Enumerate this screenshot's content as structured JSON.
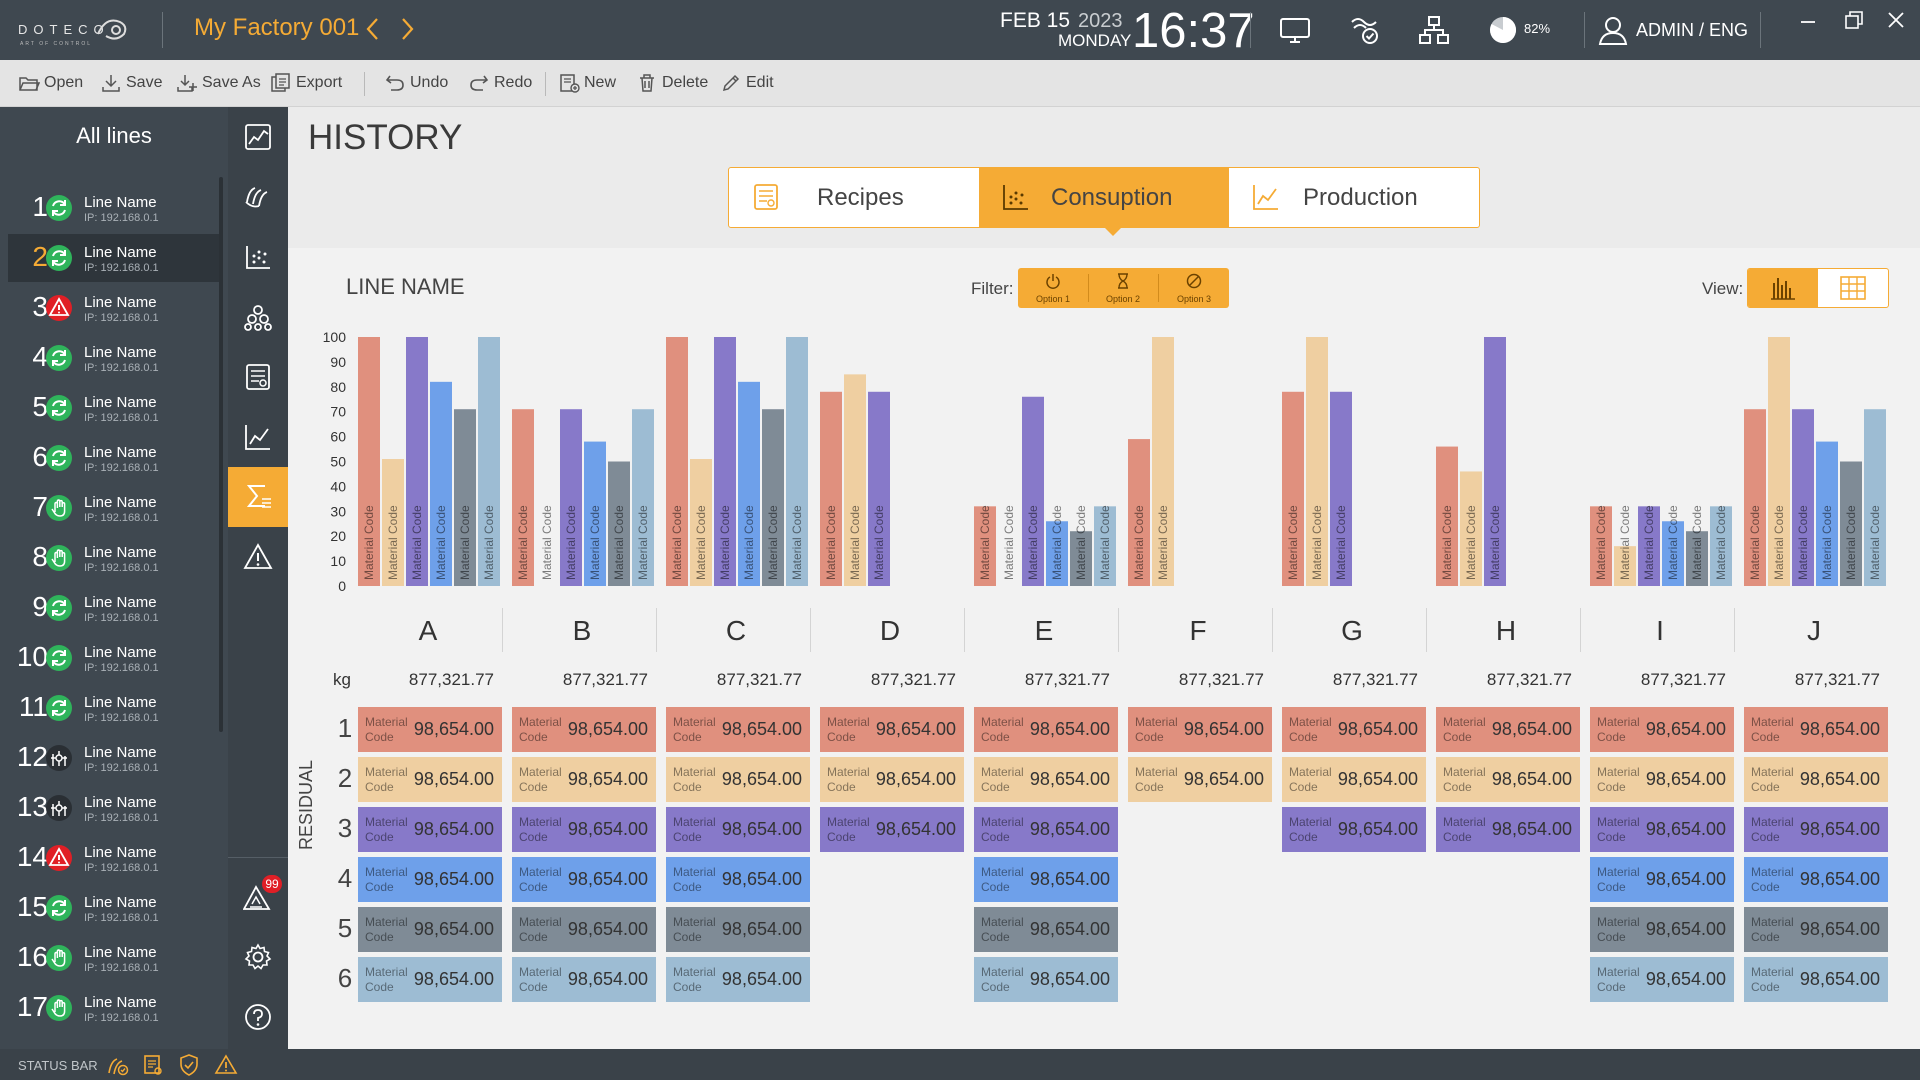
{
  "app": {
    "logo_brand": "DOTECO",
    "logo_tagline": "ART OF CONTROL",
    "factory_title": "My Factory 001",
    "date_day": "FEB 15",
    "date_year": "2023",
    "date_weekday": "MONDAY",
    "clock": "16:37",
    "disk_percent": "82%",
    "user": "ADMIN / ENG"
  },
  "toolbar": {
    "open": "Open",
    "save": "Save",
    "save_as": "Save As",
    "export": "Export",
    "undo": "Undo",
    "redo": "Redo",
    "new": "New",
    "delete": "Delete",
    "edit": "Edit"
  },
  "sidebar": {
    "title": "All lines",
    "lines": [
      {
        "num": "1",
        "name": "Line Name",
        "ip": "IP: 192.168.0.1",
        "status": "running"
      },
      {
        "num": "2",
        "name": "Line Name",
        "ip": "IP: 192.168.0.1",
        "status": "running"
      },
      {
        "num": "3",
        "name": "Line Name",
        "ip": "IP: 192.168.0.1",
        "status": "alarm"
      },
      {
        "num": "4",
        "name": "Line Name",
        "ip": "IP: 192.168.0.1",
        "status": "running"
      },
      {
        "num": "5",
        "name": "Line Name",
        "ip": "IP: 192.168.0.1",
        "status": "running"
      },
      {
        "num": "6",
        "name": "Line Name",
        "ip": "IP: 192.168.0.1",
        "status": "running"
      },
      {
        "num": "7",
        "name": "Line Name",
        "ip": "IP: 192.168.0.1",
        "status": "manual"
      },
      {
        "num": "8",
        "name": "Line Name",
        "ip": "IP: 192.168.0.1",
        "status": "manual"
      },
      {
        "num": "9",
        "name": "Line Name",
        "ip": "IP: 192.168.0.1",
        "status": "running"
      },
      {
        "num": "10",
        "name": "Line Name",
        "ip": "IP: 192.168.0.1",
        "status": "running"
      },
      {
        "num": "11",
        "name": "Line Name",
        "ip": "IP: 192.168.0.1",
        "status": "running"
      },
      {
        "num": "12",
        "name": "Line Name",
        "ip": "IP: 192.168.0.1",
        "status": "stopped"
      },
      {
        "num": "13",
        "name": "Line Name",
        "ip": "IP: 192.168.0.1",
        "status": "stopped"
      },
      {
        "num": "14",
        "name": "Line Name",
        "ip": "IP: 192.168.0.1",
        "status": "alarm"
      },
      {
        "num": "15",
        "name": "Line Name",
        "ip": "IP: 192.168.0.1",
        "status": "running"
      },
      {
        "num": "16",
        "name": "Line Name",
        "ip": "IP: 192.168.0.1",
        "status": "manual"
      },
      {
        "num": "17",
        "name": "Line Name",
        "ip": "IP: 192.168.0.1",
        "status": "manual"
      }
    ],
    "active_line": "2"
  },
  "rail": {
    "alert_count": "99",
    "items": [
      "dashboard-icon",
      "recipes-icon",
      "dosing-icon",
      "materials-icon",
      "reports-icon",
      "trend-icon",
      "history-icon",
      "alarm-icon",
      "alerts-icon",
      "settings-icon",
      "help-icon"
    ],
    "active": "history-icon"
  },
  "statusbar": {
    "label": "STATUS BAR"
  },
  "page": {
    "title": "HISTORY",
    "tabs": [
      {
        "label": "Recipes",
        "icon": "recipes-icon"
      },
      {
        "label": "Consuption",
        "icon": "consumption-icon"
      },
      {
        "label": "Production",
        "icon": "production-icon"
      }
    ],
    "active_tab": "Consuption",
    "line_title": "LINE NAME",
    "filter_label": "Filter:",
    "filter_options": [
      "Option 1",
      "Option 2",
      "Option 3"
    ],
    "view_label": "View:",
    "view_options": [
      "bar-chart-icon",
      "table-grid-icon"
    ],
    "active_view": "bar-chart-icon",
    "unit_label": "kg",
    "residual_label": "RESIDUAL"
  },
  "colors": {
    "accent": "#f5ab35",
    "dark": "#3f4850",
    "material": [
      "#e0907e",
      "#efcfa1",
      "#8779c9",
      "#6ea0ea",
      "#7f8b96",
      "#9dbcd3"
    ],
    "running": "#2fb45b",
    "alarm": "#e01f26"
  },
  "chart_data": {
    "type": "bar",
    "ylim": [
      0,
      100
    ],
    "yticks": [
      0,
      10,
      20,
      30,
      40,
      50,
      60,
      70,
      80,
      90,
      100
    ],
    "bar_label": "Material Code",
    "series_names": [
      "1",
      "2",
      "3",
      "4",
      "5",
      "6"
    ],
    "groups": [
      {
        "label": "A",
        "total": "877,321.77",
        "values": [
          100,
          51,
          100,
          82,
          71,
          100
        ]
      },
      {
        "label": "B",
        "total": "877,321.77",
        "values": [
          71,
          0,
          71,
          58,
          50,
          71
        ]
      },
      {
        "label": "C",
        "total": "877,321.77",
        "values": [
          100,
          51,
          100,
          82,
          71,
          100
        ]
      },
      {
        "label": "D",
        "total": "877,321.77",
        "values": [
          78,
          85,
          78
        ]
      },
      {
        "label": "E",
        "total": "877,321.77",
        "values": [
          32,
          0,
          76,
          26,
          22,
          32
        ]
      },
      {
        "label": "F",
        "total": "877,321.77",
        "values": [
          59,
          100
        ]
      },
      {
        "label": "G",
        "total": "877,321.77",
        "values": [
          78,
          100,
          78
        ]
      },
      {
        "label": "H",
        "total": "877,321.77",
        "values": [
          56,
          46,
          100
        ]
      },
      {
        "label": "I",
        "total": "877,321.77",
        "values": [
          32,
          16,
          32,
          26,
          22,
          32
        ]
      },
      {
        "label": "J",
        "total": "877,321.77",
        "values": [
          71,
          100,
          71,
          58,
          50,
          71
        ]
      }
    ]
  },
  "table": {
    "row_numbers": [
      "1",
      "2",
      "3",
      "4",
      "5",
      "6"
    ],
    "cell_label_1": "Material",
    "cell_label_2": "Code",
    "cell_value": "98,654.00",
    "rows_per_group": [
      6,
      6,
      6,
      3,
      6,
      2,
      3,
      3,
      6,
      6
    ]
  }
}
